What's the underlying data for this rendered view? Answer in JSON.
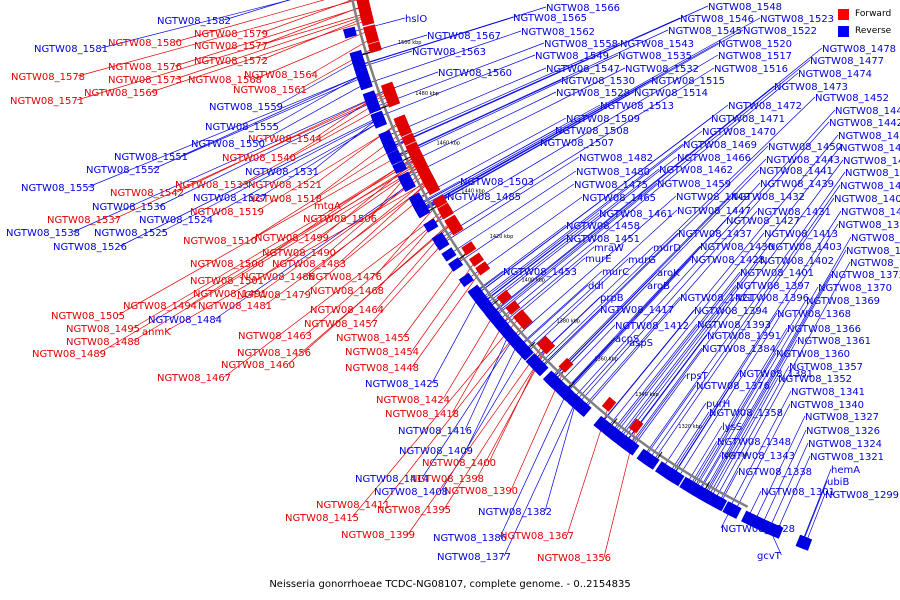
{
  "caption": "Neisseria gonorrhoeae TCDC-NG08107, complete genome. - 0..2154835",
  "legend": [
    {
      "label": "Forward",
      "color": "#ff0000"
    },
    {
      "label": "Reverse",
      "color": "#0000ff"
    }
  ],
  "colors": {
    "forward": "#e00000",
    "reverse": "#0000e0",
    "backbone": "#808080"
  },
  "ticks": [
    "1540 kbp",
    "1520 kbp",
    "1500 kbp",
    "1480 kbp",
    "1460 kbp",
    "1440 kbp",
    "1420 kbp",
    "1400 kbp",
    "1380 kbp",
    "1360 kbp",
    "1340 kbp",
    "1320 kbp",
    "1300 kbp"
  ],
  "labels": [
    {
      "t": "NGTW08_1582",
      "s": "r"
    },
    {
      "t": "NGTW08_1581",
      "s": "r"
    },
    {
      "t": "NGTW08_1580",
      "s": "f"
    },
    {
      "t": "NGTW08_1579",
      "s": "f"
    },
    {
      "t": "NGTW08_1577",
      "s": "f"
    },
    {
      "t": "NGTW08_1578",
      "s": "f"
    },
    {
      "t": "NGTW08_1576",
      "s": "f"
    },
    {
      "t": "NGTW08_1572",
      "s": "f"
    },
    {
      "t": "NGTW08_1573",
      "s": "f"
    },
    {
      "t": "NGTW08_1568",
      "s": "f"
    },
    {
      "t": "NGTW08_1569",
      "s": "f"
    },
    {
      "t": "NGTW08_1571",
      "s": "f"
    },
    {
      "t": "NGTW08_1564",
      "s": "f"
    },
    {
      "t": "NGTW08_1561",
      "s": "f"
    },
    {
      "t": "NGTW08_1559",
      "s": "r"
    },
    {
      "t": "NGTW08_1555",
      "s": "r"
    },
    {
      "t": "NGTW08_1544",
      "s": "f"
    },
    {
      "t": "NGTW08_1550",
      "s": "r"
    },
    {
      "t": "NGTW08_1551",
      "s": "r"
    },
    {
      "t": "NGTW08_1540",
      "s": "f"
    },
    {
      "t": "NGTW08_1552",
      "s": "r"
    },
    {
      "t": "NGTW08_1531",
      "s": "r"
    },
    {
      "t": "NGTW08_1533",
      "s": "f"
    },
    {
      "t": "NGTW08_1521",
      "s": "f"
    },
    {
      "t": "NGTW08_1553",
      "s": "r"
    },
    {
      "t": "NGTW08_1542",
      "s": "f"
    },
    {
      "t": "NGTW08_1527",
      "s": "r"
    },
    {
      "t": "NGTW08_1518",
      "s": "f"
    },
    {
      "t": "NGTW08_1536",
      "s": "r"
    },
    {
      "t": "NGTW08_1519",
      "s": "f"
    },
    {
      "t": "mtgA",
      "s": "f"
    },
    {
      "t": "NGTW08_1537",
      "s": "f"
    },
    {
      "t": "NGTW08_1524",
      "s": "r"
    },
    {
      "t": "NGTW08_1506",
      "s": "f"
    },
    {
      "t": "NGTW08_1538",
      "s": "r"
    },
    {
      "t": "NGTW08_1525",
      "s": "r"
    },
    {
      "t": "NGTW08_1526",
      "s": "r"
    },
    {
      "t": "NGTW08_1510",
      "s": "f"
    },
    {
      "t": "NGTW08_1499",
      "s": "f"
    },
    {
      "t": "NGTW08_1490",
      "s": "f"
    },
    {
      "t": "NGTW08_1500",
      "s": "f"
    },
    {
      "t": "NGTW08_1483",
      "s": "f"
    },
    {
      "t": "NGTW08_1501",
      "s": "f"
    },
    {
      "t": "NGTW08_1486",
      "s": "f"
    },
    {
      "t": "NGTW08_1476",
      "s": "f"
    },
    {
      "t": "NGTW08_1491",
      "s": "f"
    },
    {
      "t": "NGTW08_1479",
      "s": "f"
    },
    {
      "t": "NGTW08_1468",
      "s": "f"
    },
    {
      "t": "NGTW08_1505",
      "s": "f"
    },
    {
      "t": "NGTW08_1494",
      "s": "f"
    },
    {
      "t": "NGTW08_1481",
      "s": "f"
    },
    {
      "t": "NGTW08_1484",
      "s": "r"
    },
    {
      "t": "NGTW08_1495",
      "s": "f"
    },
    {
      "t": "anmK",
      "s": "f"
    },
    {
      "t": "NGTW08_1464",
      "s": "f"
    },
    {
      "t": "NGTW08_1457",
      "s": "f"
    },
    {
      "t": "NGTW08_1488",
      "s": "f"
    },
    {
      "t": "NGTW08_1463",
      "s": "f"
    },
    {
      "t": "NGTW08_1455",
      "s": "f"
    },
    {
      "t": "NGTW08_1489",
      "s": "f"
    },
    {
      "t": "NGTW08_1456",
      "s": "f"
    },
    {
      "t": "NGTW08_1454",
      "s": "f"
    },
    {
      "t": "NGTW08_1460",
      "s": "f"
    },
    {
      "t": "NGTW08_1448",
      "s": "f"
    },
    {
      "t": "NGTW08_1467",
      "s": "f"
    },
    {
      "t": "NGTW08_1425",
      "s": "r"
    },
    {
      "t": "NGTW08_1424",
      "s": "f"
    },
    {
      "t": "NGTW08_1418",
      "s": "f"
    },
    {
      "t": "NGTW08_1416",
      "s": "r"
    },
    {
      "t": "NGTW08_1409",
      "s": "r"
    },
    {
      "t": "NGTW08_1400",
      "s": "f"
    },
    {
      "t": "NGTW08_1414",
      "s": "r"
    },
    {
      "t": "NGTW08_1398",
      "s": "f"
    },
    {
      "t": "NGTW08_1408",
      "s": "r"
    },
    {
      "t": "NGTW08_1390",
      "s": "f"
    },
    {
      "t": "NGTW08_1411",
      "s": "f"
    },
    {
      "t": "NGTW08_1395",
      "s": "f"
    },
    {
      "t": "NGTW08_1382",
      "s": "r"
    },
    {
      "t": "NGTW08_1415",
      "s": "f"
    },
    {
      "t": "NGTW08_1399",
      "s": "f"
    },
    {
      "t": "NGTW08_1386",
      "s": "r"
    },
    {
      "t": "NGTW08_1367",
      "s": "f"
    },
    {
      "t": "NGTW08_1377",
      "s": "r"
    },
    {
      "t": "NGTW08_1356",
      "s": "f"
    },
    {
      "t": "hslO",
      "s": "r"
    },
    {
      "t": "NGTW08_1566",
      "s": "r"
    },
    {
      "t": "NGTW08_1565",
      "s": "r"
    },
    {
      "t": "NGTW08_1567",
      "s": "r"
    },
    {
      "t": "NGTW08_1562",
      "s": "r"
    },
    {
      "t": "NGTW08_1563",
      "s": "r"
    },
    {
      "t": "NGTW08_1560",
      "s": "r"
    },
    {
      "t": "NGTW08_1548",
      "s": "r"
    },
    {
      "t": "NGTW08_1546",
      "s": "r"
    },
    {
      "t": "NGTW08_1523",
      "s": "r"
    },
    {
      "t": "NGTW08_1545",
      "s": "r"
    },
    {
      "t": "NGTW08_1522",
      "s": "r"
    },
    {
      "t": "NGTW08_1558",
      "s": "r"
    },
    {
      "t": "NGTW08_1543",
      "s": "r"
    },
    {
      "t": "NGTW08_1520",
      "s": "r"
    },
    {
      "t": "NGTW08_1549",
      "s": "r"
    },
    {
      "t": "NGTW08_1535",
      "s": "r"
    },
    {
      "t": "NGTW08_1517",
      "s": "r"
    },
    {
      "t": "NGTW08_1547",
      "s": "r"
    },
    {
      "t": "NGTW08_1532",
      "s": "r"
    },
    {
      "t": "NGTW08_1516",
      "s": "r"
    },
    {
      "t": "NGTW08_1530",
      "s": "r"
    },
    {
      "t": "NGTW08_1515",
      "s": "r"
    },
    {
      "t": "NGTW08_1528",
      "s": "r"
    },
    {
      "t": "NGTW08_1514",
      "s": "r"
    },
    {
      "t": "NGTW08_1513",
      "s": "r"
    },
    {
      "t": "NGTW08_1509",
      "s": "r"
    },
    {
      "t": "NGTW08_1508",
      "s": "r"
    },
    {
      "t": "NGTW08_1507",
      "s": "r"
    },
    {
      "t": "NGTW08_1478",
      "s": "r"
    },
    {
      "t": "NGTW08_1477",
      "s": "r"
    },
    {
      "t": "NGTW08_1474",
      "s": "r"
    },
    {
      "t": "NGTW08_1473",
      "s": "r"
    },
    {
      "t": "NGTW08_1452",
      "s": "r"
    },
    {
      "t": "NGTW08_1472",
      "s": "r"
    },
    {
      "t": "NGTW08_1445",
      "s": "r"
    },
    {
      "t": "NGTW08_1471",
      "s": "r"
    },
    {
      "t": "NGTW08_1442",
      "s": "r"
    },
    {
      "t": "NGTW08_1470",
      "s": "r"
    },
    {
      "t": "NGTW08_1433",
      "s": "r"
    },
    {
      "t": "NGTW08_1469",
      "s": "r"
    },
    {
      "t": "NGTW08_1450",
      "s": "r"
    },
    {
      "t": "NGTW08_1426",
      "s": "r"
    },
    {
      "t": "NGTW08_1482",
      "s": "r"
    },
    {
      "t": "NGTW08_1466",
      "s": "r"
    },
    {
      "t": "NGTW08_1443",
      "s": "r"
    },
    {
      "t": "NGTW08_1420",
      "s": "r"
    },
    {
      "t": "NGTW08_1480",
      "s": "r"
    },
    {
      "t": "NGTW08_1462",
      "s": "r"
    },
    {
      "t": "NGTW08_1441",
      "s": "r"
    },
    {
      "t": "NGTW08_1410",
      "s": "r"
    },
    {
      "t": "NGTW08_1503",
      "s": "r"
    },
    {
      "t": "NGTW08_1475",
      "s": "r"
    },
    {
      "t": "NGTW08_1459",
      "s": "r"
    },
    {
      "t": "NGTW08_1439",
      "s": "r"
    },
    {
      "t": "NGTW08_1407",
      "s": "r"
    },
    {
      "t": "NGTW08_1485",
      "s": "r"
    },
    {
      "t": "NGTW08_1465",
      "s": "r"
    },
    {
      "t": "NGTW08_1449",
      "s": "r"
    },
    {
      "t": "NGTW08_1432",
      "s": "r"
    },
    {
      "t": "NGTW08_1406",
      "s": "r"
    },
    {
      "t": "NGTW08_1461",
      "s": "r"
    },
    {
      "t": "NGTW08_1447",
      "s": "r"
    },
    {
      "t": "NGTW08_1431",
      "s": "r"
    },
    {
      "t": "NGTW08_1405",
      "s": "r"
    },
    {
      "t": "NGTW08_1458",
      "s": "r"
    },
    {
      "t": "NGTW08_1427",
      "s": "r"
    },
    {
      "t": "NGTW08_1392",
      "s": "r"
    },
    {
      "t": "NGTW08_1451",
      "s": "r"
    },
    {
      "t": "NGTW08_1437",
      "s": "r"
    },
    {
      "t": "NGTW08_1413",
      "s": "r"
    },
    {
      "t": "NGTW08_1383",
      "s": "r"
    },
    {
      "t": "mraW",
      "s": "r"
    },
    {
      "t": "murD",
      "s": "r"
    },
    {
      "t": "NGTW08_1430",
      "s": "r"
    },
    {
      "t": "NGTW08_1403",
      "s": "r"
    },
    {
      "t": "NGTW08_1379",
      "s": "r"
    },
    {
      "t": "murE",
      "s": "r"
    },
    {
      "t": "murG",
      "s": "r"
    },
    {
      "t": "NGTW08_1428",
      "s": "r"
    },
    {
      "t": "NGTW08_1402",
      "s": "r"
    },
    {
      "t": "NGTW08_1375",
      "s": "r"
    },
    {
      "t": "NGTW08_1453",
      "s": "r"
    },
    {
      "t": "murC",
      "s": "r"
    },
    {
      "t": "aroK",
      "s": "r"
    },
    {
      "t": "NGTW08_1401",
      "s": "r"
    },
    {
      "t": "NGTW08_1373",
      "s": "r"
    },
    {
      "t": "ddl",
      "s": "r"
    },
    {
      "t": "aroB",
      "s": "r"
    },
    {
      "t": "NGTW08_1397",
      "s": "r"
    },
    {
      "t": "NGTW08_1370",
      "s": "r"
    },
    {
      "t": "prpB",
      "s": "r"
    },
    {
      "t": "NGTW08_1421",
      "s": "r"
    },
    {
      "t": "NGTW08_1396",
      "s": "r"
    },
    {
      "t": "NGTW08_1369",
      "s": "r"
    },
    {
      "t": "NGTW08_1417",
      "s": "r"
    },
    {
      "t": "NGTW08_1394",
      "s": "r"
    },
    {
      "t": "NGTW08_1368",
      "s": "r"
    },
    {
      "t": "NGTW08_1412",
      "s": "r"
    },
    {
      "t": "NGTW08_1393",
      "s": "r"
    },
    {
      "t": "NGTW08_1366",
      "s": "r"
    },
    {
      "t": "acpS",
      "s": "r"
    },
    {
      "t": "NGTW08_1391",
      "s": "r"
    },
    {
      "t": "NGTW08_1361",
      "s": "r"
    },
    {
      "t": "aspS",
      "s": "r"
    },
    {
      "t": "NGTW08_1360",
      "s": "r"
    },
    {
      "t": "NGTW08_1384",
      "s": "r"
    },
    {
      "t": "NGTW08_1357",
      "s": "r"
    },
    {
      "t": "rpsT",
      "s": "r"
    },
    {
      "t": "NGTW08_1381",
      "s": "r"
    },
    {
      "t": "NGTW08_1352",
      "s": "r"
    },
    {
      "t": "NGTW08_1376",
      "s": "r"
    },
    {
      "t": "NGTW08_1341",
      "s": "r"
    },
    {
      "t": "purH",
      "s": "r"
    },
    {
      "t": "NGTW08_1340",
      "s": "r"
    },
    {
      "t": "NGTW08_1358",
      "s": "r"
    },
    {
      "t": "NGTW08_1327",
      "s": "r"
    },
    {
      "t": "lysS",
      "s": "r"
    },
    {
      "t": "NGTW08_1326",
      "s": "r"
    },
    {
      "t": "NGTW08_1348",
      "s": "r"
    },
    {
      "t": "NGTW08_1324",
      "s": "r"
    },
    {
      "t": "NGTW08_1343",
      "s": "r"
    },
    {
      "t": "NGTW08_1321",
      "s": "r"
    },
    {
      "t": "NGTW08_1338",
      "s": "r"
    },
    {
      "t": "hemA",
      "s": "r"
    },
    {
      "t": "NGTW08_1301",
      "s": "r"
    },
    {
      "t": "ubiB",
      "s": "r"
    },
    {
      "t": "NGTW08_1299",
      "s": "r"
    },
    {
      "t": "NGTW08_1328",
      "s": "r"
    },
    {
      "t": "gcvT",
      "s": "r"
    }
  ]
}
